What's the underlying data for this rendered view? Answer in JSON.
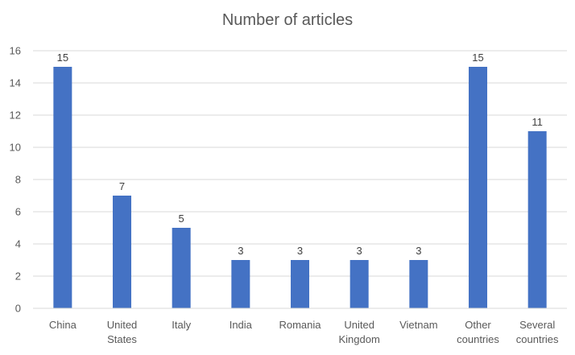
{
  "chart_data": {
    "type": "bar",
    "title": "Number of articles",
    "categories": [
      [
        "China"
      ],
      [
        "United",
        "States"
      ],
      [
        "Italy"
      ],
      [
        "India"
      ],
      [
        "Romania"
      ],
      [
        "United",
        "Kingdom"
      ],
      [
        "Vietnam"
      ],
      [
        "Other",
        "countries"
      ],
      [
        "Several",
        "countries"
      ]
    ],
    "values": [
      15,
      7,
      5,
      3,
      3,
      3,
      3,
      15,
      11
    ],
    "ylim": [
      0,
      16
    ],
    "yticks": [
      0,
      2,
      4,
      6,
      8,
      10,
      12,
      14,
      16
    ],
    "grid": true,
    "data_labels": true,
    "bar_color": "#4472C4",
    "grid_color": "#d9d9d9"
  }
}
